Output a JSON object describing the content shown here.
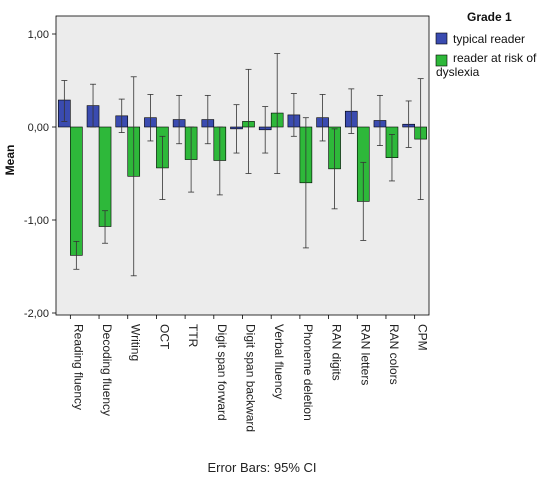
{
  "chart_data": {
    "type": "bar",
    "ylabel": "Mean",
    "ylim": [
      -2.0,
      1.2
    ],
    "yticks": [
      1.0,
      0.0,
      -1.0,
      -2.0
    ],
    "ytick_labels": [
      "1,00",
      "0,00",
      "-1,00",
      "-2,00"
    ],
    "categories": [
      "Reading fluency",
      "Decoding fluency",
      "Writing",
      "OCT",
      "TTR",
      "Digit span forward",
      "Digit span backward",
      "Verbal fluency",
      "Phoneme deletion",
      "RAN digits",
      "RAN letters",
      "RAN colors",
      "CPM"
    ],
    "series": [
      {
        "name": "typical reader",
        "color": "#3a4bb0",
        "values": [
          0.29,
          0.23,
          0.12,
          0.1,
          0.08,
          0.08,
          -0.02,
          -0.03,
          0.13,
          0.1,
          0.17,
          0.07,
          0.03
        ],
        "ci_low": [
          0.06,
          0.0,
          -0.06,
          -0.15,
          -0.18,
          -0.18,
          -0.28,
          -0.28,
          -0.1,
          -0.15,
          -0.07,
          -0.2,
          -0.22
        ],
        "ci_high": [
          0.5,
          0.46,
          0.3,
          0.35,
          0.34,
          0.34,
          0.24,
          0.22,
          0.36,
          0.35,
          0.41,
          0.34,
          0.28
        ]
      },
      {
        "name": "reader at risk of dyslexia",
        "color": "#2eb83a",
        "values": [
          -1.38,
          -1.07,
          -0.53,
          -0.44,
          -0.35,
          -0.36,
          0.06,
          0.15,
          -0.6,
          -0.45,
          -0.8,
          -0.33,
          -0.13
        ],
        "ci_low": [
          -1.53,
          -1.25,
          -1.6,
          -0.78,
          -0.7,
          -0.73,
          -0.5,
          -0.5,
          -1.3,
          -0.88,
          -1.22,
          -0.58,
          -0.78
        ],
        "ci_high": [
          -1.23,
          -0.9,
          0.54,
          -0.1,
          0.0,
          0.0,
          0.62,
          0.79,
          0.1,
          -0.02,
          -0.38,
          -0.08,
          0.52
        ]
      }
    ],
    "legend": {
      "title": "Grade 1",
      "placement": "right"
    },
    "grid": false,
    "footnote": "Error Bars: 95% CI",
    "background": "#ececec"
  }
}
